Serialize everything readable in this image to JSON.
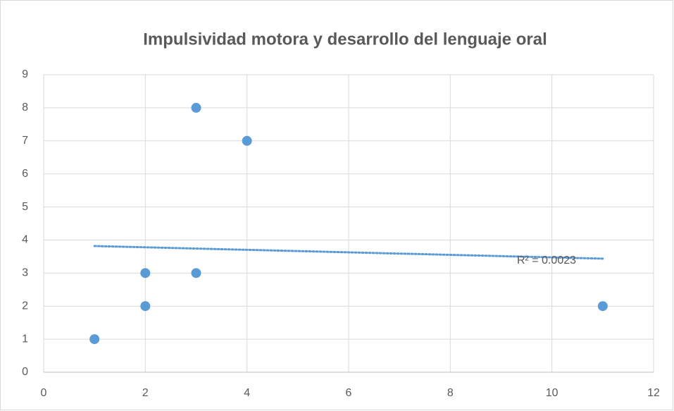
{
  "chart_data": {
    "type": "scatter",
    "title": "Impulsividad motora y desarrollo del lenguaje oral",
    "x": [
      1,
      2,
      2,
      3,
      3,
      4,
      11
    ],
    "values": [
      1,
      2,
      3,
      3,
      8,
      7,
      2
    ],
    "color": "#5b9bd5",
    "xlim": [
      0,
      12
    ],
    "xticks": [
      0,
      2,
      4,
      6,
      8,
      10,
      12
    ],
    "ylim": [
      0,
      9
    ],
    "yticks": [
      0,
      1,
      2,
      3,
      4,
      5,
      6,
      7,
      8,
      9
    ],
    "grid": true,
    "trendline": "linear",
    "annotation": "R² = 0.0023"
  }
}
